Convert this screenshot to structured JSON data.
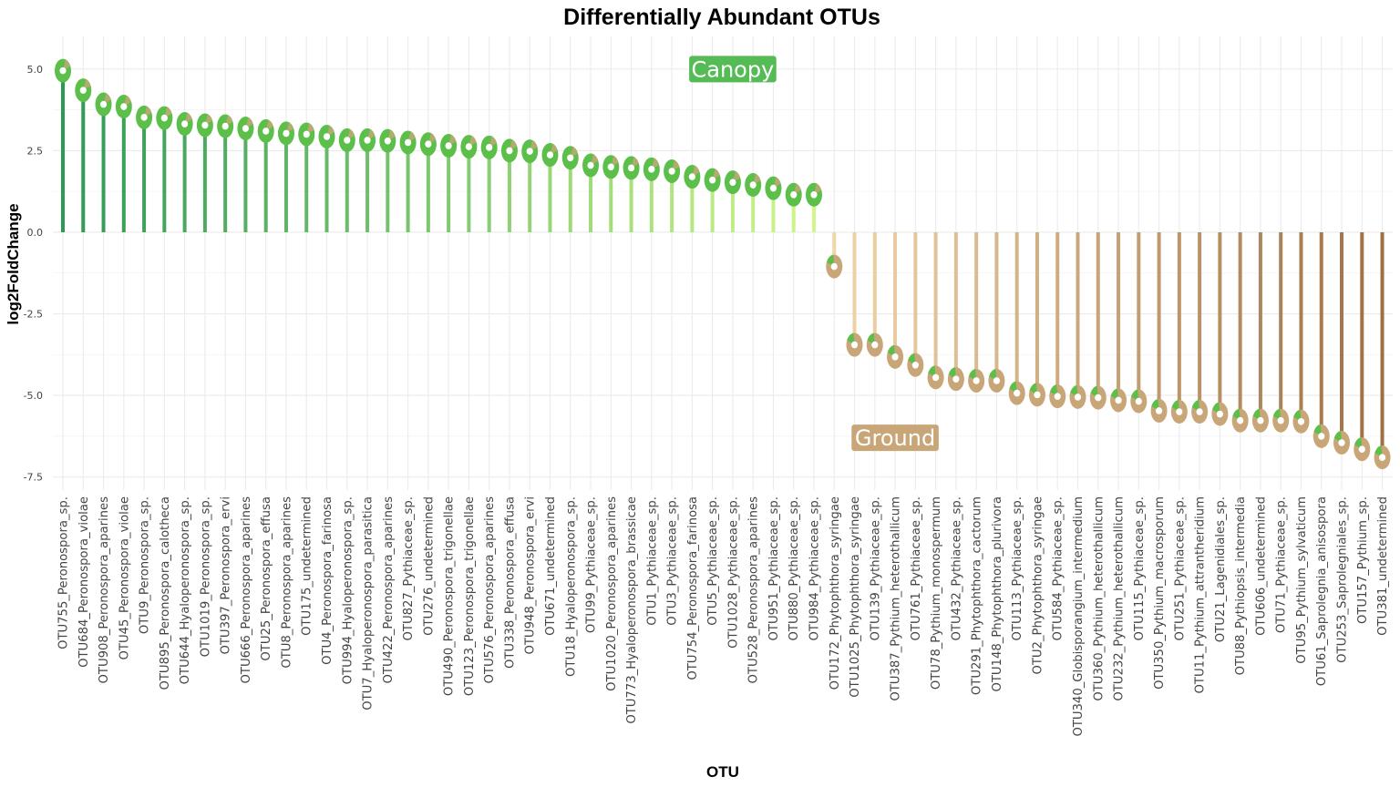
{
  "chart_data": {
    "type": "lollipop",
    "title": "Differentially Abundant OTUs",
    "xlabel": "OTU",
    "ylabel": "log2FoldChange",
    "ylim": [
      -7.9,
      6.0
    ],
    "yticks": [
      -7.5,
      -5.0,
      -2.5,
      0.0,
      2.5,
      5.0
    ],
    "ytick_labels": [
      "-7.5",
      "-5.0",
      "-2.5",
      "0.0",
      "2.5",
      "5.0"
    ],
    "grid": true,
    "categories": [
      "OTU755_Peronospora_sp.",
      "OTU684_Peronospora_violae",
      "OTU908_Peronospora_aparines",
      "OTU45_Peronospora_violae",
      "OTU9_Peronospora_sp.",
      "OTU895_Peronospora_calotheca",
      "OTU644_Hyaloperonospora_sp.",
      "OTU1019_Peronospora_sp.",
      "OTU397_Peronospora_ervi",
      "OTU666_Peronospora_aparines",
      "OTU25_Peronospora_effusa",
      "OTU8_Peronospora_aparines",
      "OTU175_undetermined",
      "OTU4_Peronospora_farinosa",
      "OTU994_Hyaloperonospora_sp.",
      "OTU7_Hyaloperonospora_parasitica",
      "OTU422_Peronospora_aparines",
      "OTU827_Pythiaceae_sp.",
      "OTU276_undetermined",
      "OTU490_Peronospora_trigonellae",
      "OTU123_Peronospora_trigonellae",
      "OTU576_Peronospora_aparines",
      "OTU338_Peronospora_effusa",
      "OTU948_Peronospora_ervi",
      "OTU671_undetermined",
      "OTU18_Hyaloperonospora_sp.",
      "OTU99_Pythiaceae_sp.",
      "OTU1020_Peronospora_aparines",
      "OTU773_Hyaloperonospora_brassicae",
      "OTU1_Pythiaceae_sp.",
      "OTU3_Pythiaceae_sp.",
      "OTU754_Peronospora_farinosa",
      "OTU5_Pythiaceae_sp.",
      "OTU1028_Pythiaceae_sp.",
      "OTU528_Peronospora_aparines",
      "OTU951_Pythiaceae_sp.",
      "OTU880_Pythiaceae_sp.",
      "OTU984_Pythiaceae_sp.",
      "OTU172_Phytophthora_syringae",
      "OTU1025_Phytophthora_syringae",
      "OTU139_Pythiaceae_sp.",
      "OTU387_Pythium_heterothallicum",
      "OTU761_Pythiaceae_sp.",
      "OTU78_Pythium_monospermum",
      "OTU432_Pythiaceae_sp.",
      "OTU291_Phytophthora_cactorum",
      "OTU148_Phytophthora_plurivora",
      "OTU113_Pythiaceae_sp.",
      "OTU2_Phytophthora_syringae",
      "OTU584_Pythiaceae_sp.",
      "OTU340_Globisporangium_intermedium",
      "OTU360_Pythium_heterothallicum",
      "OTU232_Pythium_heterothallicum",
      "OTU115_Pythiaceae_sp.",
      "OTU350_Pythium_macrosporum",
      "OTU251_Pythiaceae_sp.",
      "OTU11_Pythium_attrantheridium",
      "OTU21_Lagenidiales_sp.",
      "OTU88_Pythiopsis_intermedia",
      "OTU606_undetermined",
      "OTU71_Pythiaceae_sp.",
      "OTU95_Pythium_sylvaticum",
      "OTU61_Saprolegnia_anisospora",
      "OTU253_Saprolegniales_sp.",
      "OTU157_Pythium_sp.",
      "OTU381_undetermined"
    ],
    "values": [
      4.95,
      4.35,
      3.92,
      3.85,
      3.52,
      3.5,
      3.32,
      3.28,
      3.25,
      3.18,
      3.1,
      3.03,
      3.0,
      2.93,
      2.82,
      2.82,
      2.8,
      2.75,
      2.7,
      2.65,
      2.62,
      2.6,
      2.5,
      2.48,
      2.37,
      2.28,
      2.05,
      2.0,
      1.97,
      1.93,
      1.87,
      1.7,
      1.6,
      1.53,
      1.45,
      1.35,
      1.15,
      1.15,
      -1.05,
      -3.45,
      -3.45,
      -3.82,
      -4.07,
      -4.45,
      -4.5,
      -4.55,
      -4.55,
      -4.93,
      -4.98,
      -5.03,
      -5.05,
      -5.07,
      -5.15,
      -5.18,
      -5.47,
      -5.5,
      -5.5,
      -5.57,
      -5.77,
      -5.77,
      -5.77,
      -5.8,
      -6.25,
      -6.45,
      -6.65,
      -6.9
    ],
    "annotations": [
      {
        "text": "Canopy",
        "color": "#55bb55",
        "x_category": "OTU1028_Pythiaceae_sp.",
        "y": 5.0
      },
      {
        "text": "Ground",
        "color": "#c9a678",
        "x_category": "OTU387_Pythium_heterothallicum",
        "y": -6.3
      }
    ],
    "colors": {
      "canopy_dark": "#2e9955",
      "canopy_light": "#d0f78a",
      "ground_light": "#f0d5a9",
      "ground_dark": "#9d7043",
      "point_green": "#5cbf4a",
      "point_tan": "#c9a678"
    }
  }
}
